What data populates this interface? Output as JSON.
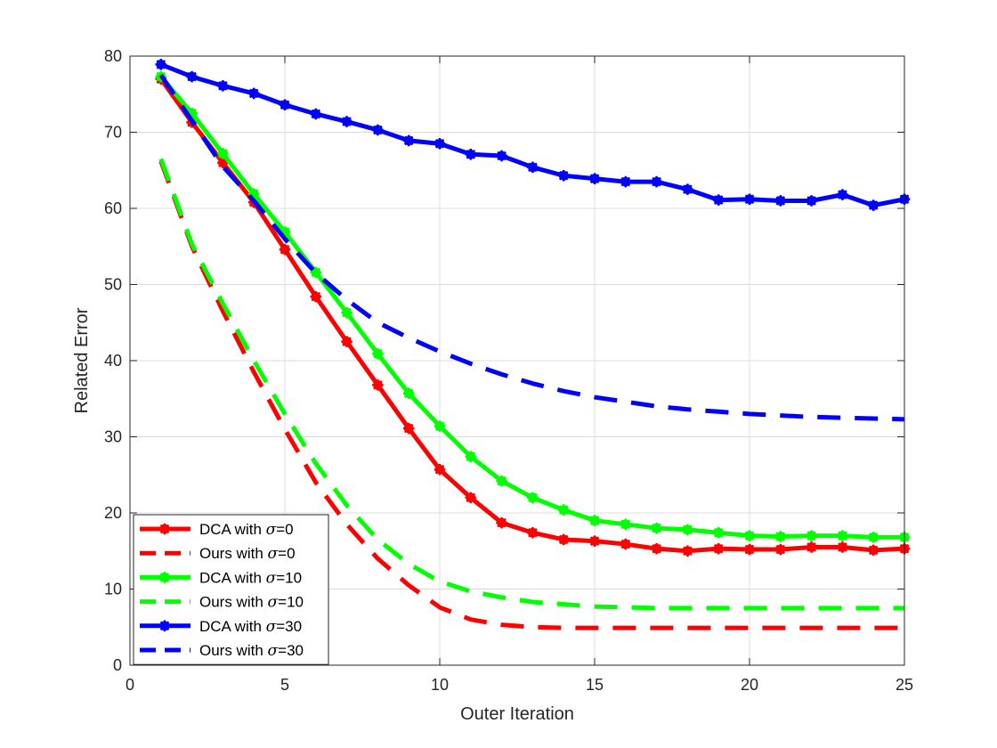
{
  "chart_data": {
    "type": "line",
    "title": "",
    "xlabel": "Outer Iteration",
    "ylabel": "Related Error",
    "xlim": [
      0,
      25
    ],
    "ylim": [
      0,
      80
    ],
    "xticks": [
      0,
      5,
      10,
      15,
      20,
      25
    ],
    "yticks": [
      0,
      10,
      20,
      30,
      40,
      50,
      60,
      70,
      80
    ],
    "grid": true,
    "legend_position": "bottom-left",
    "x": [
      1,
      2,
      3,
      4,
      5,
      6,
      7,
      8,
      9,
      10,
      11,
      12,
      13,
      14,
      15,
      16,
      17,
      18,
      19,
      20,
      21,
      22,
      23,
      24,
      25
    ],
    "series": [
      {
        "label_prefix": "DCA with ",
        "sigma": "0",
        "color": "#ff0000",
        "style": "solid",
        "markers": true,
        "values": [
          77.0,
          71.3,
          66.0,
          60.8,
          54.6,
          48.4,
          42.5,
          36.8,
          31.1,
          25.7,
          22.0,
          18.7,
          17.4,
          16.5,
          16.3,
          15.9,
          15.3,
          15.0,
          15.3,
          15.2,
          15.2,
          15.5,
          15.5,
          15.1,
          15.3
        ]
      },
      {
        "label_prefix": "Ours with ",
        "sigma": "0",
        "color": "#ff0000",
        "style": "dashed",
        "markers": false,
        "values": [
          66.2,
          55.0,
          46.5,
          38.5,
          31.0,
          24.0,
          18.5,
          14.0,
          10.5,
          7.6,
          6.0,
          5.3,
          5.0,
          4.9,
          4.9,
          4.9,
          4.9,
          4.9,
          4.9,
          4.9,
          4.9,
          4.9,
          4.9,
          4.9,
          4.9
        ]
      },
      {
        "label_prefix": "DCA with ",
        "sigma": "10",
        "color": "#00ff00",
        "style": "solid",
        "markers": true,
        "values": [
          77.3,
          72.5,
          67.2,
          61.9,
          56.9,
          51.6,
          46.3,
          40.9,
          35.7,
          31.4,
          27.4,
          24.2,
          22.0,
          20.4,
          19.0,
          18.5,
          18.0,
          17.8,
          17.4,
          17.0,
          16.9,
          17.0,
          17.0,
          16.8,
          16.8
        ]
      },
      {
        "label_prefix": "Ours with ",
        "sigma": "10",
        "color": "#00ff00",
        "style": "dashed",
        "markers": false,
        "values": [
          66.5,
          55.3,
          47.5,
          40.0,
          33.0,
          26.5,
          21.0,
          16.5,
          13.3,
          11.0,
          9.7,
          8.9,
          8.3,
          8.0,
          7.7,
          7.6,
          7.5,
          7.5,
          7.5,
          7.5,
          7.5,
          7.5,
          7.5,
          7.5,
          7.5
        ]
      },
      {
        "label_prefix": "DCA with ",
        "sigma": "30",
        "color": "#0000ff",
        "style": "solid",
        "markers": true,
        "values": [
          78.9,
          77.3,
          76.1,
          75.1,
          73.6,
          72.4,
          71.4,
          70.3,
          68.9,
          68.5,
          67.1,
          66.9,
          65.4,
          64.3,
          63.9,
          63.5,
          63.5,
          62.5,
          61.1,
          61.2,
          61.0,
          61.0,
          61.8,
          60.4,
          61.2
        ]
      },
      {
        "label_prefix": "Ours with ",
        "sigma": "30",
        "color": "#0000ff",
        "style": "dashed",
        "markers": false,
        "values": [
          77.5,
          71.5,
          65.5,
          61.0,
          56.0,
          51.5,
          48.0,
          45.0,
          43.0,
          41.2,
          39.6,
          38.2,
          37.0,
          36.0,
          35.2,
          34.6,
          34.0,
          33.6,
          33.3,
          33.0,
          32.8,
          32.6,
          32.5,
          32.4,
          32.3
        ]
      }
    ]
  }
}
